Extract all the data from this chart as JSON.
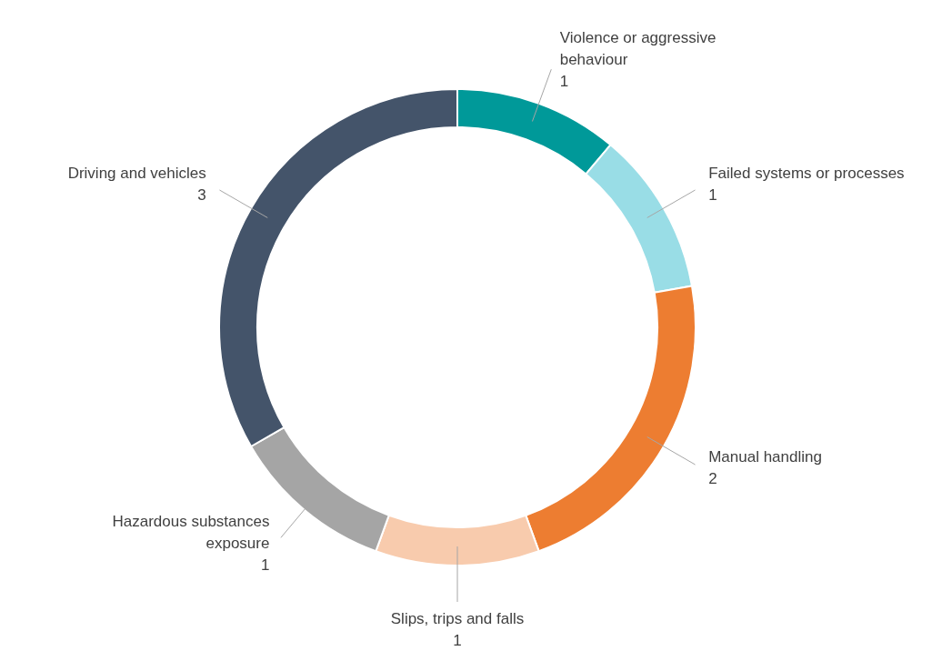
{
  "chart_data": {
    "type": "donut",
    "categories": [
      "Violence or aggressive behaviour",
      "Failed systems or processes",
      "Manual handling",
      "Slips, trips and falls",
      "Hazardous substances exposure",
      "Driving and vehicles"
    ],
    "values": [
      1,
      1,
      2,
      1,
      1,
      3
    ],
    "colors": [
      "#009999",
      "#99dde6",
      "#ed7d31",
      "#f8cbad",
      "#a5a5a5",
      "#44546a"
    ],
    "data_labels": true
  }
}
